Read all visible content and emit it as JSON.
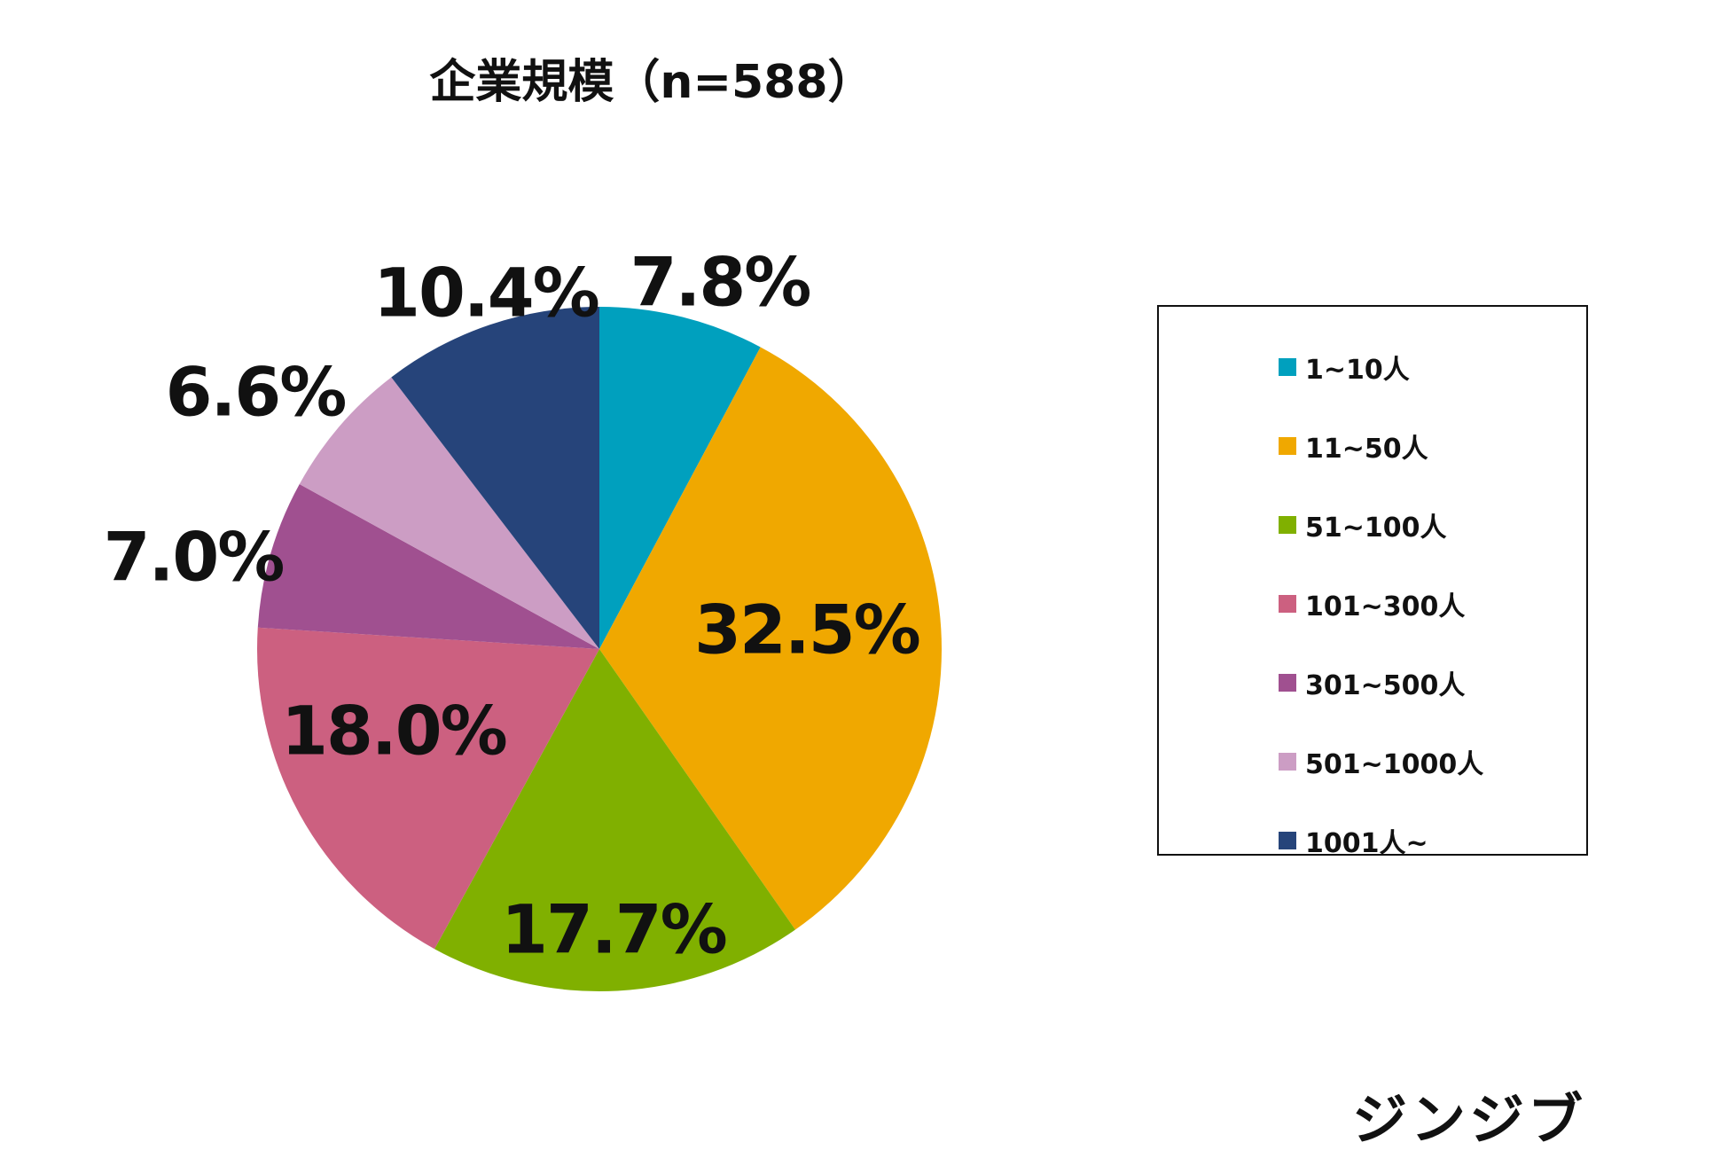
{
  "chart_data": {
    "type": "pie",
    "title": "企業規模（n=588）",
    "categories": [
      "1~10人",
      "11~50人",
      "51~100人",
      "101~300人",
      "301~500人",
      "501~1000人",
      "1001人~"
    ],
    "values": [
      7.8,
      32.5,
      17.7,
      18.0,
      7.0,
      6.6,
      10.4
    ],
    "labels": [
      "7.8%",
      "32.5%",
      "17.7%",
      "18.0%",
      "7.0%",
      "6.6%",
      "10.4%"
    ],
    "colors": [
      "#00A0BE",
      "#F0A800",
      "#80B000",
      "#CC6080",
      "#A05090",
      "#CC9DC4",
      "#26447A"
    ],
    "legend_position": "right",
    "start_angle": "12 o'clock",
    "direction": "clockwise"
  },
  "brand": {
    "logo_text": "ジンジブ"
  }
}
